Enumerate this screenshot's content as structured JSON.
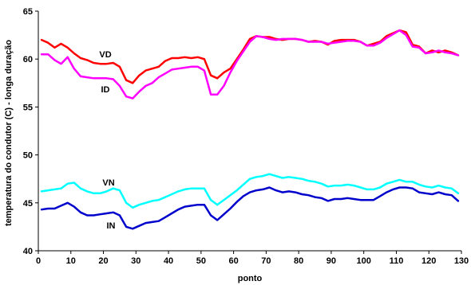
{
  "chart_data": {
    "type": "line",
    "title": "",
    "xlabel": "ponto",
    "ylabel": "temperatura do condutor (C) - longa duração",
    "xlim": [
      0,
      130
    ],
    "ylim": [
      40,
      65
    ],
    "xticks": [
      0,
      10,
      20,
      30,
      40,
      50,
      60,
      70,
      80,
      90,
      100,
      110,
      120,
      130
    ],
    "yticks": [
      40,
      45,
      50,
      55,
      60,
      65
    ],
    "grid": false,
    "legend": "none (series labelled directly on the plot)",
    "series": [
      {
        "name": "VD",
        "color": "#ff0000",
        "x": [
          1,
          3,
          5,
          7,
          9,
          11,
          13,
          15,
          17,
          19,
          21,
          23,
          25,
          27,
          29,
          31,
          33,
          35,
          37,
          39,
          41,
          43,
          45,
          47,
          49,
          51,
          53,
          55,
          57,
          59,
          61,
          63,
          65,
          67,
          69,
          71,
          73,
          75,
          77,
          79,
          81,
          83,
          85,
          87,
          89,
          91,
          93,
          95,
          97,
          99,
          101,
          103,
          105,
          107,
          109,
          111,
          113,
          115,
          117,
          119,
          121,
          123,
          125,
          127,
          129
        ],
        "values": [
          62.0,
          61.7,
          61.2,
          61.6,
          61.2,
          60.6,
          60.1,
          59.9,
          59.6,
          59.5,
          59.5,
          59.6,
          59.2,
          57.8,
          57.5,
          58.3,
          58.8,
          59.0,
          59.2,
          59.8,
          60.1,
          60.1,
          60.2,
          60.1,
          60.2,
          60.0,
          58.3,
          58.0,
          58.6,
          59.0,
          60.0,
          61.0,
          62.1,
          62.4,
          62.3,
          62.3,
          62.1,
          62.0,
          62.1,
          62.1,
          62.0,
          61.8,
          61.9,
          61.8,
          61.5,
          61.9,
          62.0,
          62.0,
          62.0,
          61.8,
          61.4,
          61.6,
          61.8,
          62.4,
          62.7,
          63.0,
          62.8,
          61.5,
          61.3,
          60.6,
          60.9,
          60.7,
          60.9,
          60.7,
          60.4
        ]
      },
      {
        "name": "ID",
        "color": "#ff00ff",
        "x": [
          1,
          3,
          5,
          7,
          9,
          11,
          13,
          15,
          17,
          19,
          21,
          23,
          25,
          27,
          29,
          31,
          33,
          35,
          37,
          39,
          41,
          43,
          45,
          47,
          49,
          51,
          53,
          55,
          57,
          59,
          61,
          63,
          65,
          67,
          69,
          71,
          73,
          75,
          77,
          79,
          81,
          83,
          85,
          87,
          89,
          91,
          93,
          95,
          97,
          99,
          101,
          103,
          105,
          107,
          109,
          111,
          113,
          115,
          117,
          119,
          121,
          123,
          125,
          127,
          129
        ],
        "values": [
          60.5,
          60.5,
          59.9,
          59.5,
          60.2,
          59.0,
          58.2,
          58.1,
          58.0,
          58.0,
          58.0,
          57.9,
          57.2,
          56.1,
          55.9,
          56.6,
          57.2,
          57.5,
          58.1,
          58.5,
          58.9,
          59.0,
          59.1,
          59.2,
          59.2,
          58.8,
          56.3,
          56.3,
          57.2,
          58.6,
          59.8,
          60.8,
          61.8,
          62.4,
          62.3,
          62.1,
          62.0,
          62.1,
          62.1,
          62.1,
          62.0,
          61.8,
          61.8,
          61.8,
          61.6,
          61.7,
          61.8,
          61.9,
          61.9,
          61.8,
          61.4,
          61.4,
          61.7,
          62.2,
          62.6,
          63.0,
          62.5,
          61.3,
          61.2,
          60.6,
          60.7,
          60.9,
          60.7,
          60.6,
          60.4
        ]
      },
      {
        "name": "VN",
        "color": "#00ffff",
        "x": [
          1,
          3,
          5,
          7,
          9,
          11,
          13,
          15,
          17,
          19,
          21,
          23,
          25,
          27,
          29,
          31,
          33,
          35,
          37,
          39,
          41,
          43,
          45,
          47,
          49,
          51,
          53,
          55,
          57,
          59,
          61,
          63,
          65,
          67,
          69,
          71,
          73,
          75,
          77,
          79,
          81,
          83,
          85,
          87,
          89,
          91,
          93,
          95,
          97,
          99,
          101,
          103,
          105,
          107,
          109,
          111,
          113,
          115,
          117,
          119,
          121,
          123,
          125,
          127,
          129
        ],
        "values": [
          46.2,
          46.3,
          46.4,
          46.5,
          47.0,
          47.1,
          46.5,
          46.2,
          46.0,
          46.0,
          46.2,
          46.5,
          46.3,
          45.0,
          44.5,
          44.8,
          45.0,
          45.2,
          45.3,
          45.6,
          45.9,
          46.2,
          46.4,
          46.5,
          46.5,
          46.5,
          45.3,
          44.8,
          45.3,
          45.8,
          46.3,
          46.9,
          47.5,
          47.7,
          47.8,
          48.0,
          47.8,
          47.6,
          47.7,
          47.6,
          47.5,
          47.3,
          47.2,
          47.0,
          46.7,
          46.8,
          46.8,
          46.9,
          46.8,
          46.6,
          46.4,
          46.4,
          46.6,
          47.0,
          47.2,
          47.4,
          47.2,
          47.2,
          46.9,
          46.7,
          46.6,
          46.8,
          46.6,
          46.5,
          46.0
        ]
      },
      {
        "name": "IN",
        "color": "#0000cc",
        "x": [
          1,
          3,
          5,
          7,
          9,
          11,
          13,
          15,
          17,
          19,
          21,
          23,
          25,
          27,
          29,
          31,
          33,
          35,
          37,
          39,
          41,
          43,
          45,
          47,
          49,
          51,
          53,
          55,
          57,
          59,
          61,
          63,
          65,
          67,
          69,
          71,
          73,
          75,
          77,
          79,
          81,
          83,
          85,
          87,
          89,
          91,
          93,
          95,
          97,
          99,
          101,
          103,
          105,
          107,
          109,
          111,
          113,
          115,
          117,
          119,
          121,
          123,
          125,
          127,
          129
        ],
        "values": [
          44.3,
          44.4,
          44.4,
          44.7,
          45.0,
          44.6,
          44.0,
          43.7,
          43.7,
          43.8,
          43.9,
          44.0,
          43.7,
          42.5,
          42.3,
          42.6,
          42.9,
          43.0,
          43.1,
          43.5,
          43.9,
          44.3,
          44.6,
          44.7,
          44.8,
          44.8,
          43.7,
          43.2,
          43.8,
          44.4,
          45.1,
          45.7,
          46.1,
          46.3,
          46.4,
          46.6,
          46.3,
          46.1,
          46.2,
          46.1,
          45.9,
          45.8,
          45.6,
          45.5,
          45.2,
          45.4,
          45.4,
          45.5,
          45.4,
          45.3,
          45.3,
          45.3,
          45.7,
          46.1,
          46.4,
          46.6,
          46.6,
          46.5,
          46.1,
          46.0,
          45.9,
          46.1,
          45.9,
          45.8,
          45.2
        ]
      }
    ],
    "annotations": [
      "VD",
      "ID",
      "VN",
      "IN"
    ]
  }
}
